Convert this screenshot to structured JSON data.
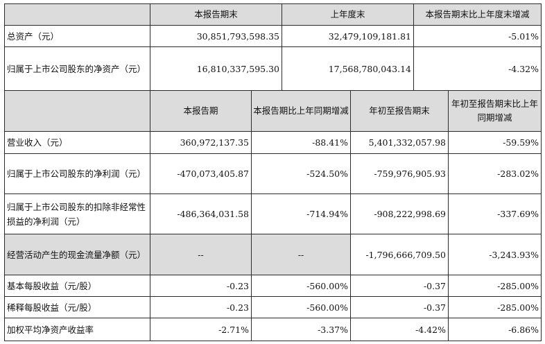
{
  "section1": {
    "headers": [
      "本报告期末",
      "上年度末",
      "本报告期末比上年度末增减"
    ],
    "rows": [
      {
        "label": "总资产（元）",
        "values": [
          "30,851,793,598.35",
          "32,479,109,181.81",
          "-5.01%"
        ]
      },
      {
        "label": "归属于上市公司股东的净资产（元）",
        "values": [
          "16,810,337,595.30",
          "17,568,780,043.14",
          "-4.32%"
        ]
      }
    ]
  },
  "section2": {
    "headers": [
      "本报告期",
      "本报告期比上年同期增减",
      "年初至报告期末",
      "年初至报告期末比上年同期增减"
    ],
    "rows": [
      {
        "label": "营业收入（元）",
        "values": [
          "360,972,137.35",
          "-88.41%",
          "5,401,332,057.98",
          "-59.59%"
        ]
      },
      {
        "label": "归属于上市公司股东的净利润（元）",
        "values": [
          "-470,073,405.87",
          "-524.50%",
          "-759,976,905.93",
          "-283.02%"
        ]
      },
      {
        "label": "归属于上市公司股东的扣除非经常性损益的净利润（元）",
        "values": [
          "-486,364,031.58",
          "-714.94%",
          "-908,222,998.69",
          "-337.69%"
        ]
      },
      {
        "label": "经营活动产生的现金流量净额（元）",
        "values": [
          "--",
          "--",
          "-1,796,666,709.50",
          "-3,243.93%"
        ]
      },
      {
        "label": "基本每股收益（元/股）",
        "values": [
          "-0.23",
          "-560.00%",
          "-0.37",
          "-285.00%"
        ]
      },
      {
        "label": "稀释每股收益（元/股）",
        "values": [
          "-0.23",
          "-560.00%",
          "-0.37",
          "-285.00%"
        ]
      },
      {
        "label": "加权平均净资产收益率",
        "values": [
          "-2.71%",
          "-3.37%",
          "-4.42%",
          "-6.86%"
        ]
      }
    ]
  }
}
